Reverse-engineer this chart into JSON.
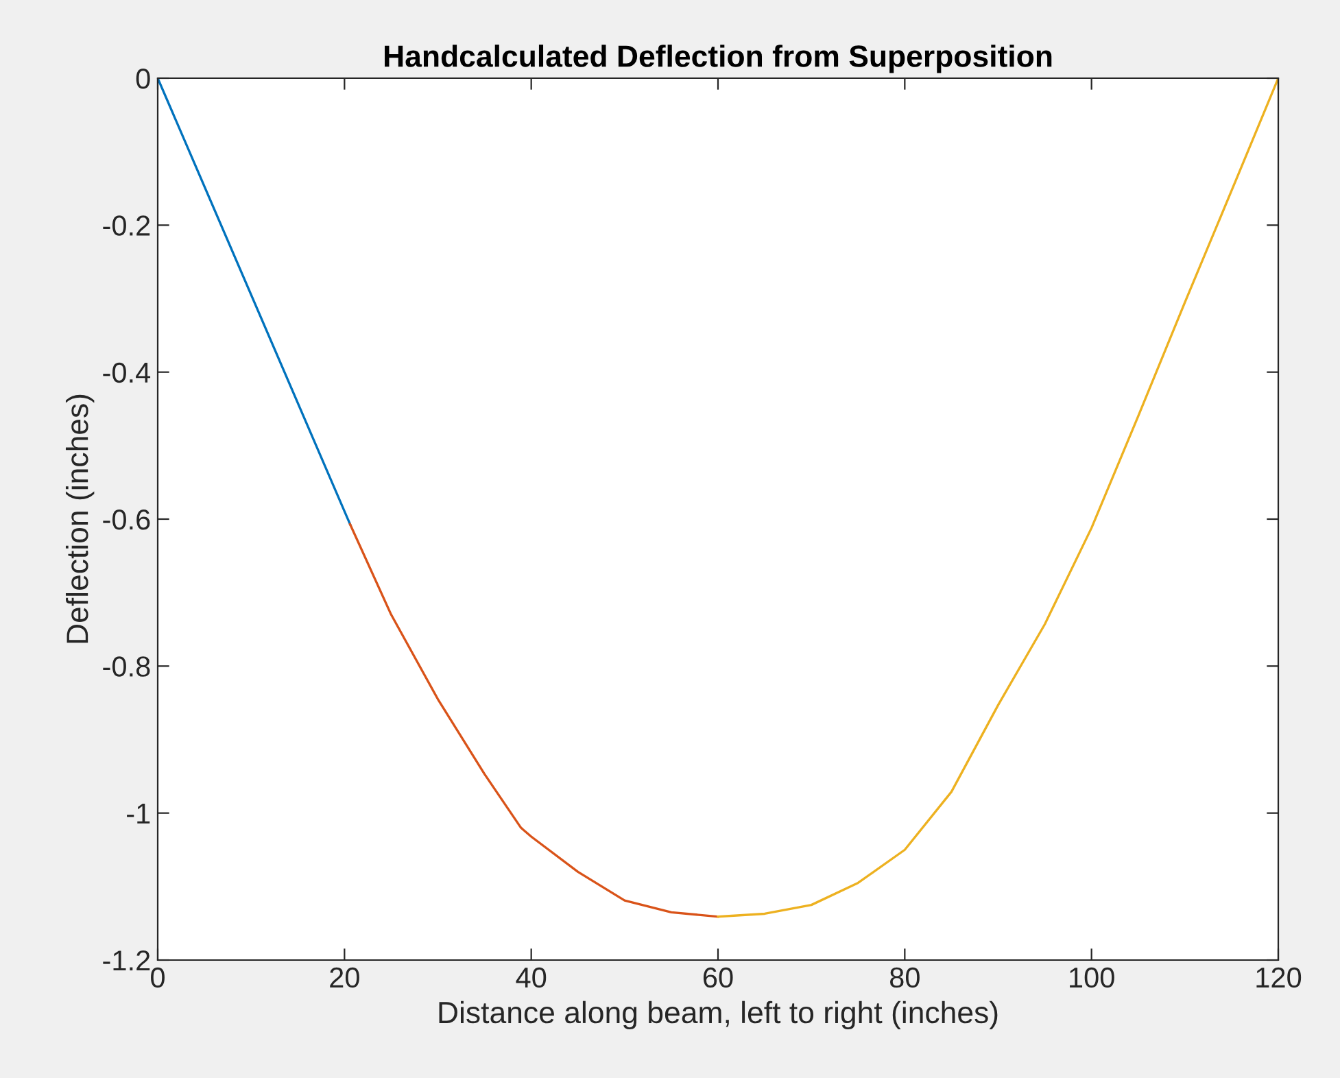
{
  "chart_data": {
    "type": "line",
    "title": "Handcalculated Deflection from Superposition",
    "xlabel": "Distance along beam, left to right (inches)",
    "ylabel": "Deflection (inches)",
    "xlim": [
      0,
      120
    ],
    "ylim": [
      -1.2,
      0
    ],
    "xticks": [
      0,
      20,
      40,
      60,
      80,
      100,
      120
    ],
    "yticks": [
      {
        "value": -1.2,
        "label": "-1.2"
      },
      {
        "value": -1,
        "label": "-1"
      },
      {
        "value": -0.8,
        "label": "-0.8"
      },
      {
        "value": -0.6,
        "label": "-0.6"
      },
      {
        "value": -0.4,
        "label": "-0.4"
      },
      {
        "value": -0.2,
        "label": "-0.2"
      },
      0
    ],
    "grid": false,
    "legend": false,
    "line_style": "solid",
    "marker": "none",
    "series": [
      {
        "color": "#0072bd",
        "x": [
          0,
          20.6
        ],
        "values": [
          0,
          -0.607
        ]
      },
      {
        "color": "#d95319",
        "x": [
          20.6,
          25,
          30,
          35,
          38.9,
          40,
          45,
          50,
          55,
          60
        ],
        "values": [
          -0.607,
          -0.73,
          -0.845,
          -0.947,
          -1.02,
          -1.032,
          -1.08,
          -1.119,
          -1.135,
          -1.141
        ]
      },
      {
        "color": "#edb120",
        "x": [
          60,
          65,
          70,
          75,
          80,
          85,
          90,
          95,
          100,
          105,
          110,
          115,
          120
        ],
        "values": [
          -1.141,
          -1.137,
          -1.125,
          -1.095,
          -1.05,
          -0.971,
          -0.853,
          -0.743,
          -0.612,
          -0.46,
          -0.305,
          -0.153,
          0
        ]
      }
    ]
  }
}
